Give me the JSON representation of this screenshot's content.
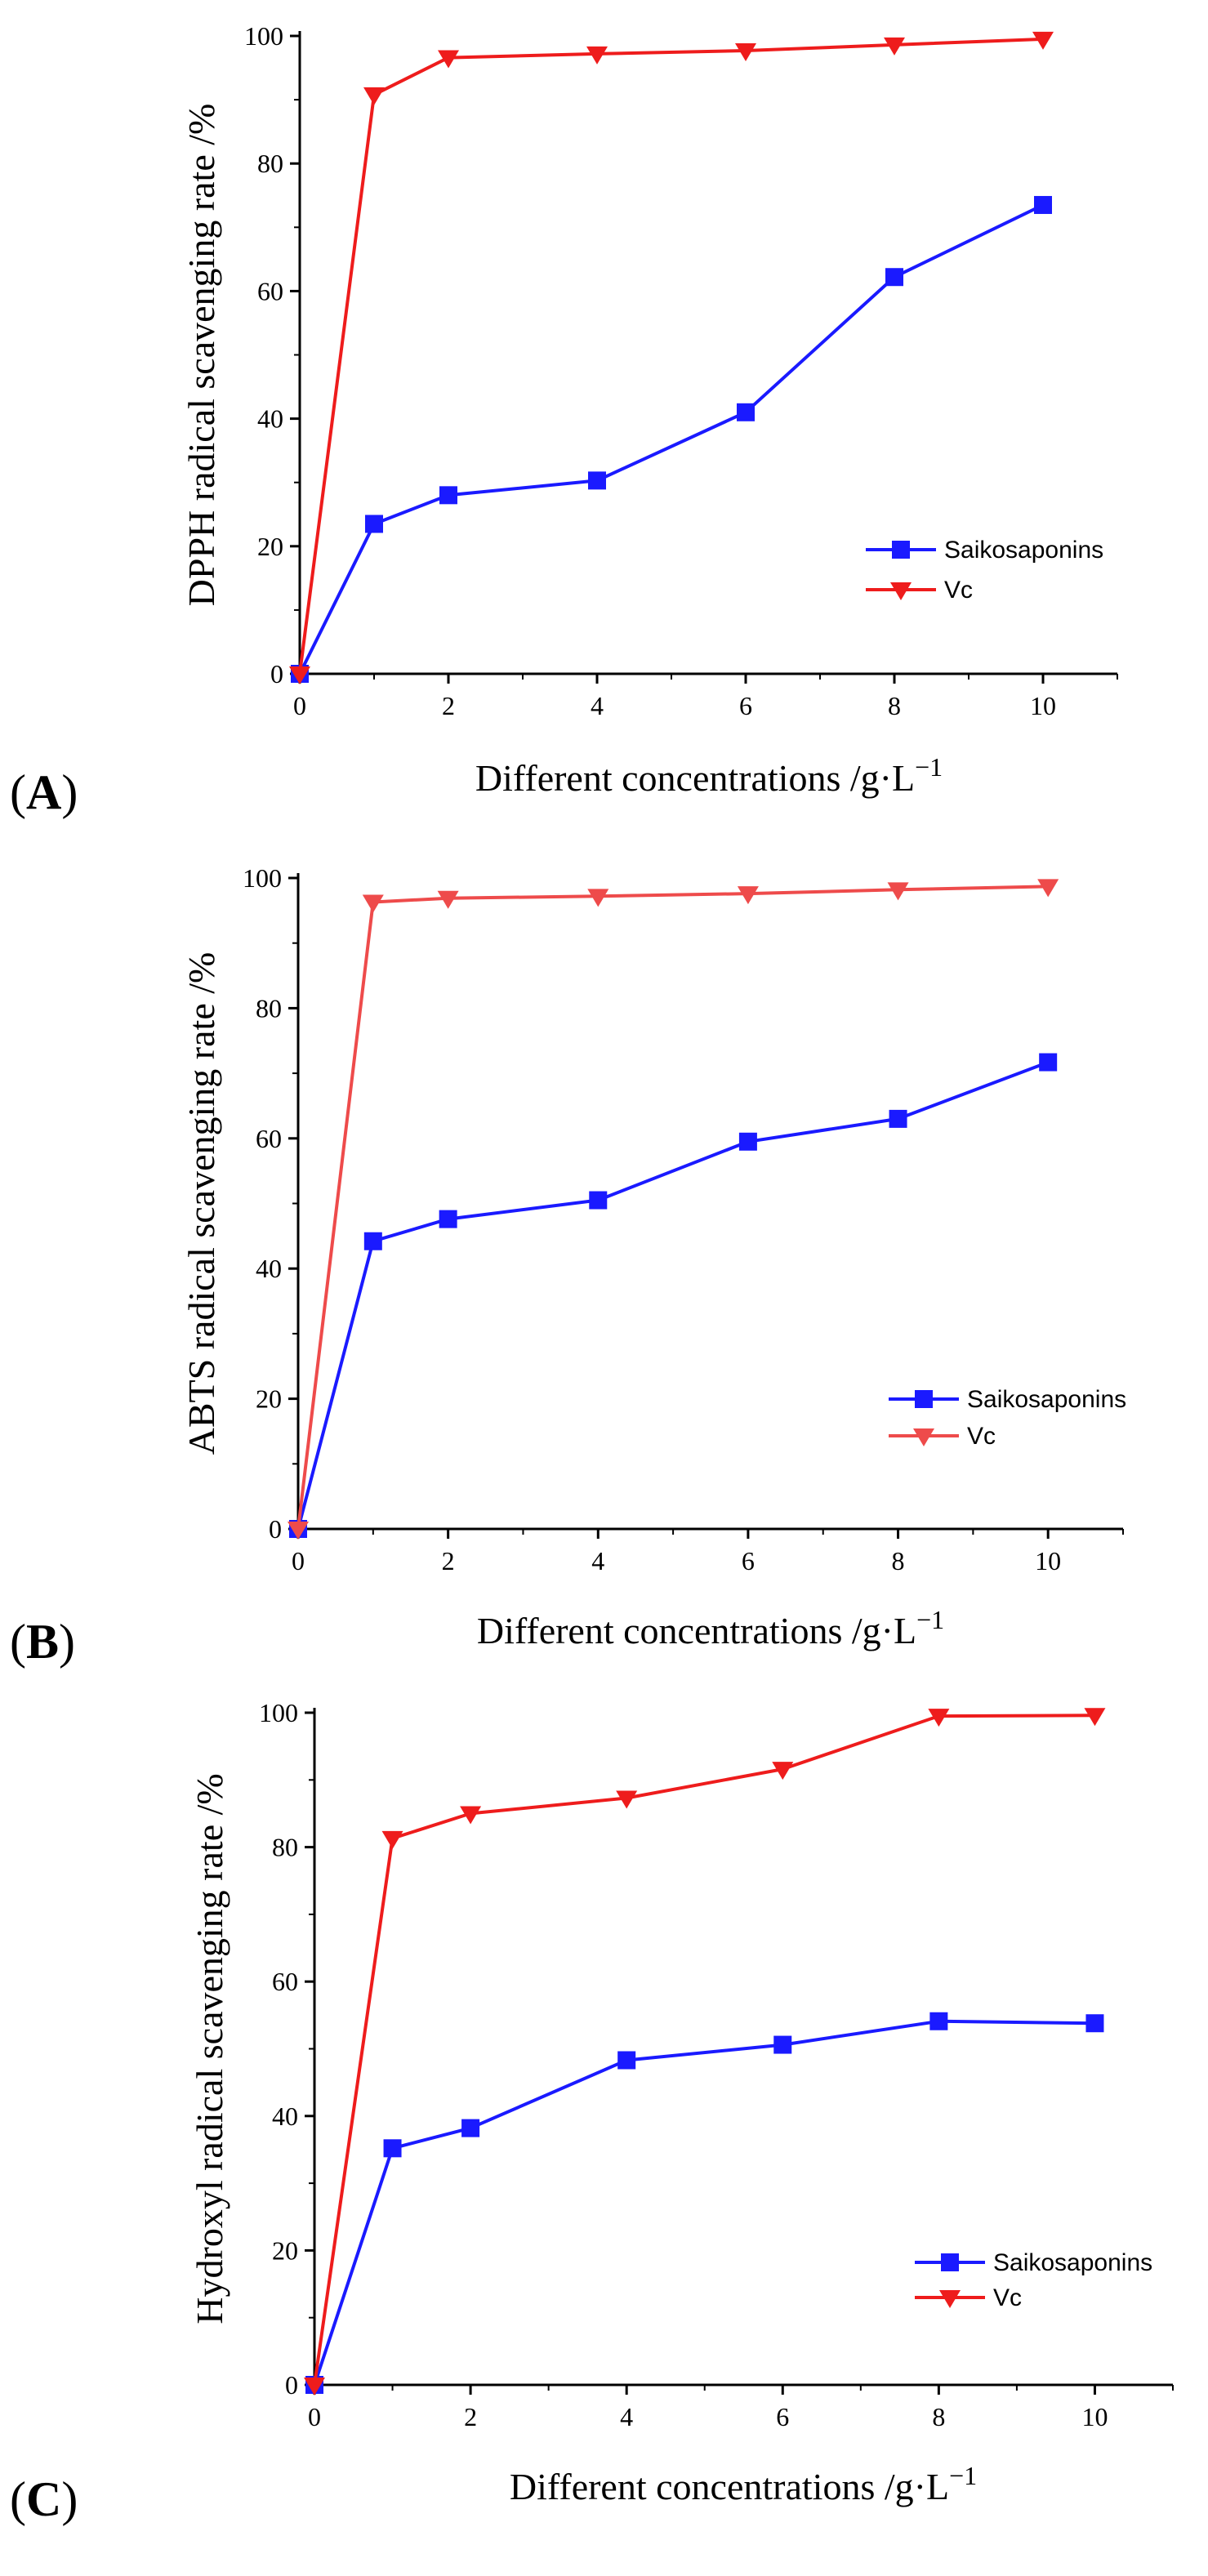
{
  "figure": {
    "panel_labels": [
      "A",
      "B",
      "C"
    ]
  },
  "chart_data": [
    {
      "type": "line",
      "panel": "A",
      "title": "",
      "xlabel": "Different concentrations /g·L",
      "xlabel_superscript": "−1",
      "ylabel": "DPPH radical scavenging rate /%",
      "x": [
        0,
        1,
        2,
        4,
        6,
        8,
        10
      ],
      "xticks": [
        0,
        2,
        4,
        6,
        8,
        10
      ],
      "yticks": [
        0,
        20,
        40,
        60,
        80,
        100
      ],
      "xlim": [
        0,
        11
      ],
      "ylim": [
        0,
        100
      ],
      "legend_position": "lower-right",
      "series": [
        {
          "name": "Saikosaponins",
          "marker": "square",
          "color": "#1a1aff",
          "values": [
            0,
            23.5,
            28.0,
            30.3,
            41.0,
            62.2,
            73.5
          ]
        },
        {
          "name": "Vc",
          "marker": "triangle-down",
          "color": "#ee1c1c",
          "values": [
            0,
            90.8,
            96.6,
            97.2,
            97.7,
            98.6,
            99.5
          ]
        }
      ]
    },
    {
      "type": "line",
      "panel": "B",
      "title": "",
      "xlabel": "Different concentrations /g·L",
      "xlabel_superscript": "−1",
      "ylabel": "ABTS radical scavenging rate /%",
      "x": [
        0,
        1,
        2,
        4,
        6,
        8,
        10
      ],
      "xticks": [
        0,
        2,
        4,
        6,
        8,
        10
      ],
      "yticks": [
        0,
        20,
        40,
        60,
        80,
        100
      ],
      "xlim": [
        0,
        11
      ],
      "ylim": [
        0,
        100
      ],
      "legend_position": "lower-right",
      "series": [
        {
          "name": "Saikosaponins",
          "marker": "square",
          "color": "#1a1aff",
          "values": [
            0,
            44.2,
            47.6,
            50.5,
            59.5,
            63.0,
            71.7
          ]
        },
        {
          "name": "Vc",
          "marker": "triangle-down",
          "color": "#ee4b4b",
          "values": [
            0,
            96.3,
            96.9,
            97.2,
            97.6,
            98.2,
            98.7
          ]
        }
      ]
    },
    {
      "type": "line",
      "panel": "C",
      "title": "",
      "xlabel": "Different concentrations /g·L",
      "xlabel_superscript": "−1",
      "ylabel": "Hydroxyl radical scavenging rate /%",
      "x": [
        0,
        1,
        2,
        4,
        6,
        8,
        10
      ],
      "xticks": [
        0,
        2,
        4,
        6,
        8,
        10
      ],
      "yticks": [
        0,
        20,
        40,
        60,
        80,
        100
      ],
      "xlim": [
        0,
        11
      ],
      "ylim": [
        0,
        100
      ],
      "legend_position": "lower-right",
      "series": [
        {
          "name": "Saikosaponins",
          "marker": "square",
          "color": "#1a1aff",
          "values": [
            0,
            35.2,
            38.2,
            48.3,
            50.6,
            54.1,
            53.8
          ]
        },
        {
          "name": "Vc",
          "marker": "triangle-down",
          "color": "#ee1c1c",
          "values": [
            0,
            81.3,
            85.0,
            87.3,
            91.6,
            99.5,
            99.6
          ]
        }
      ]
    }
  ]
}
